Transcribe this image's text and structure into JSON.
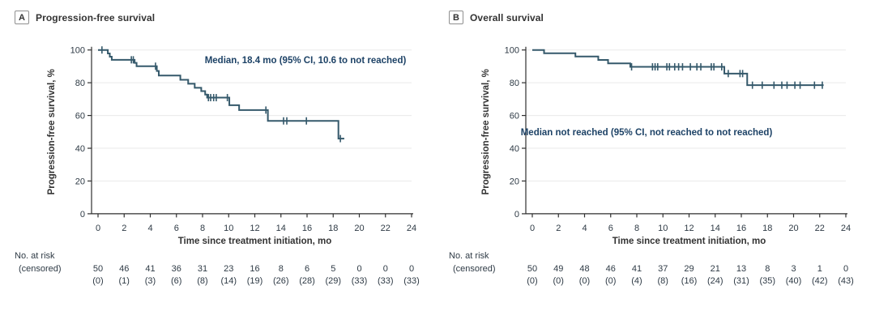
{
  "figure": {
    "background": "#ffffff",
    "kind": "kaplan_meier_two_panel"
  },
  "styles": {
    "curve_color": "#35596b",
    "grid_color": "#eaeaea",
    "axis_color": "#2f2f2f",
    "tick_text_color": "#2e3a45",
    "label_color": "#333333",
    "annotation_color": "#1d4266",
    "panel_border_color": "#8f8f8f"
  },
  "chart_data": [
    {
      "type": "line",
      "subtype": "kaplan_meier_step",
      "panel_label": "A",
      "title": "Progression-free survival",
      "annotation": "Median, 18.4 mo (95% CI, 10.6 to not reached)",
      "xlabel": "Time since treatment initiation, mo",
      "ylabel": "Progression-free survival, %",
      "xlim": [
        0,
        24
      ],
      "ylim": [
        0,
        100
      ],
      "xticks": [
        0,
        2,
        4,
        6,
        8,
        10,
        12,
        14,
        16,
        18,
        20,
        22,
        24
      ],
      "yticks": [
        0,
        20,
        40,
        60,
        80,
        100
      ],
      "grid": "horizontal",
      "km_steps": [
        [
          0,
          100
        ],
        [
          0.75,
          97.9
        ],
        [
          0.9,
          95.9
        ],
        [
          1.05,
          94.0
        ],
        [
          2.8,
          92.1
        ],
        [
          2.95,
          90.1
        ],
        [
          4.5,
          87.2
        ],
        [
          4.65,
          84.4
        ],
        [
          6.3,
          81.8
        ],
        [
          6.9,
          79.4
        ],
        [
          7.4,
          76.9
        ],
        [
          7.9,
          74.9
        ],
        [
          8.2,
          72.8
        ],
        [
          8.35,
          70.9
        ],
        [
          10.05,
          66.3
        ],
        [
          10.8,
          63.3
        ],
        [
          13.0,
          56.7
        ],
        [
          18.4,
          45.9
        ]
      ],
      "curve_end": 18.85,
      "censor_marks": [
        [
          0.3,
          100
        ],
        [
          2.55,
          94.0
        ],
        [
          2.7,
          94.0
        ],
        [
          4.4,
          90.1
        ],
        [
          8.45,
          70.9
        ],
        [
          8.62,
          70.9
        ],
        [
          8.85,
          70.9
        ],
        [
          9.05,
          70.9
        ],
        [
          9.9,
          70.9
        ],
        [
          12.85,
          63.3
        ],
        [
          14.2,
          56.7
        ],
        [
          14.45,
          56.7
        ],
        [
          15.95,
          56.7
        ],
        [
          18.55,
          45.9
        ]
      ],
      "annotation_pos": {
        "x": 377,
        "y": 69
      },
      "at_risk_label": "No. at risk",
      "censored_label": "(censored)",
      "at_risk": [
        50,
        46,
        41,
        36,
        31,
        23,
        16,
        8,
        6,
        5,
        0,
        0,
        0
      ],
      "censored": [
        "(0)",
        "(1)",
        "(3)",
        "(6)",
        "(8)",
        "(14)",
        "(19)",
        "(26)",
        "(28)",
        "(29)",
        "(33)",
        "(33)",
        "(33)"
      ]
    },
    {
      "type": "line",
      "subtype": "kaplan_meier_step",
      "panel_label": "B",
      "title": "Overall survival",
      "annotation": "Median not reached (95% CI, not reached to not reached)",
      "xlabel": "Time since treatment initiation, mo",
      "ylabel": "Progression-free survival, %",
      "xlim": [
        0,
        24
      ],
      "ylim": [
        0,
        100
      ],
      "xticks": [
        0,
        2,
        4,
        6,
        8,
        10,
        12,
        14,
        16,
        18,
        20,
        22,
        24
      ],
      "yticks": [
        0,
        20,
        40,
        60,
        80,
        100
      ],
      "grid": "horizontal",
      "km_steps": [
        [
          0,
          100
        ],
        [
          0.9,
          98.0
        ],
        [
          3.3,
          96.0
        ],
        [
          5.05,
          93.9
        ],
        [
          5.8,
          91.8
        ],
        [
          7.5,
          89.7
        ],
        [
          14.7,
          85.6
        ],
        [
          16.45,
          78.5
        ]
      ],
      "curve_end": 22.3,
      "censor_marks": [
        [
          7.6,
          89.7
        ],
        [
          9.2,
          89.7
        ],
        [
          9.4,
          89.7
        ],
        [
          9.6,
          89.7
        ],
        [
          10.3,
          89.7
        ],
        [
          10.5,
          89.7
        ],
        [
          10.9,
          89.7
        ],
        [
          11.2,
          89.7
        ],
        [
          11.5,
          89.7
        ],
        [
          12.1,
          89.7
        ],
        [
          12.6,
          89.7
        ],
        [
          12.9,
          89.7
        ],
        [
          13.7,
          89.7
        ],
        [
          13.9,
          89.7
        ],
        [
          14.5,
          89.7
        ],
        [
          15.0,
          85.6
        ],
        [
          15.9,
          85.6
        ],
        [
          16.1,
          85.6
        ],
        [
          16.85,
          78.5
        ],
        [
          17.6,
          78.5
        ],
        [
          18.5,
          78.5
        ],
        [
          19.1,
          78.5
        ],
        [
          19.5,
          78.5
        ],
        [
          20.1,
          78.5
        ],
        [
          20.5,
          78.5
        ],
        [
          21.6,
          78.5
        ],
        [
          22.2,
          78.5
        ]
      ],
      "annotation_pos": {
        "x": 262,
        "y": 158
      },
      "at_risk_label": "No. at risk",
      "censored_label": "(censored)",
      "at_risk": [
        50,
        49,
        48,
        46,
        41,
        37,
        29,
        21,
        13,
        8,
        3,
        1,
        0
      ],
      "censored": [
        "(0)",
        "(0)",
        "(0)",
        "(0)",
        "(4)",
        "(8)",
        "(16)",
        "(24)",
        "(31)",
        "(35)",
        "(40)",
        "(42)",
        "(43)"
      ]
    }
  ]
}
